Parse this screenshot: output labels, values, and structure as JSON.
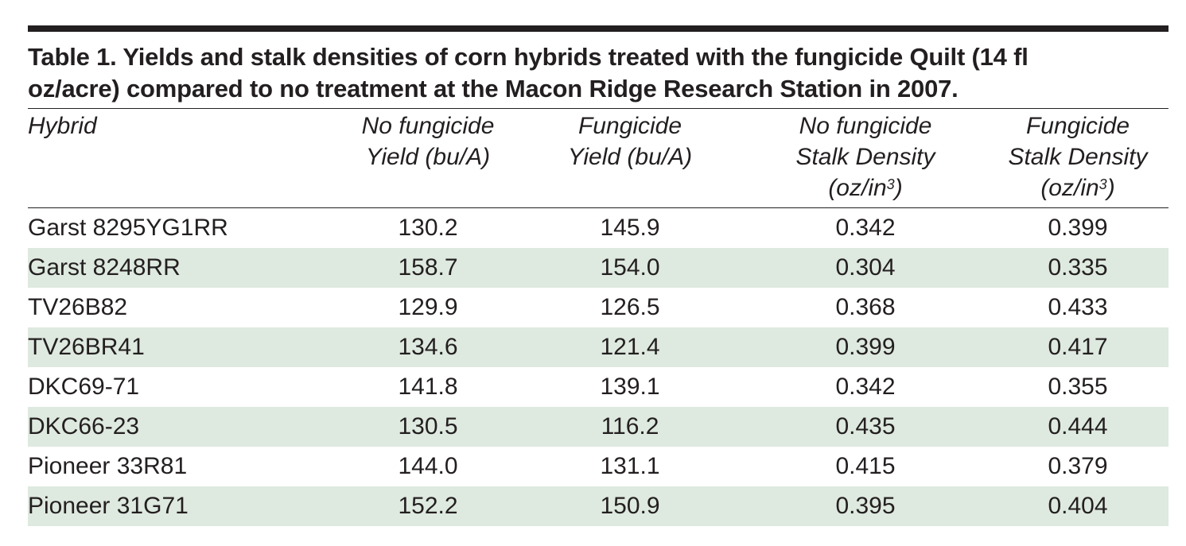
{
  "caption": {
    "line1": "Table 1. Yields and stalk densities of corn hybrids treated with the fungicide Quilt (14 fl",
    "line2": "oz/acre) compared to no treatment at the Macon Ridge Research Station in 2007."
  },
  "columns": [
    {
      "lines": [
        "Hybrid"
      ]
    },
    {
      "lines": [
        "No fungicide",
        "Yield (bu/A)"
      ]
    },
    {
      "lines": [
        "Fungicide",
        "Yield (bu/A)"
      ]
    },
    {
      "lines": [
        "No fungicide",
        "Stalk Density",
        "(oz/in",
        "3",
        ")"
      ]
    },
    {
      "lines": [
        "Fungicide",
        "Stalk Density",
        "(oz/in",
        "3",
        ")"
      ]
    }
  ],
  "rows": [
    {
      "hybrid": "Garst 8295YG1RR",
      "nf_yield": "130.2",
      "f_yield": "145.9",
      "nf_density": "0.342",
      "f_density": "0.399"
    },
    {
      "hybrid": "Garst 8248RR",
      "nf_yield": "158.7",
      "f_yield": "154.0",
      "nf_density": "0.304",
      "f_density": "0.335"
    },
    {
      "hybrid": "TV26B82",
      "nf_yield": "129.9",
      "f_yield": "126.5",
      "nf_density": "0.368",
      "f_density": "0.433"
    },
    {
      "hybrid": "TV26BR41",
      "nf_yield": "134.6",
      "f_yield": "121.4",
      "nf_density": "0.399",
      "f_density": "0.417"
    },
    {
      "hybrid": "DKC69-71",
      "nf_yield": "141.8",
      "f_yield": "139.1",
      "nf_density": "0.342",
      "f_density": "0.355"
    },
    {
      "hybrid": "DKC66-23",
      "nf_yield": "130.5",
      "f_yield": "116.2",
      "nf_density": "0.435",
      "f_density": "0.444"
    },
    {
      "hybrid": "Pioneer 33R81",
      "nf_yield": "144.0",
      "f_yield": "131.1",
      "nf_density": "0.415",
      "f_density": "0.379"
    },
    {
      "hybrid": "Pioneer 31G71",
      "nf_yield": "152.2",
      "f_yield": "150.9",
      "nf_density": "0.395",
      "f_density": "0.404"
    }
  ],
  "colors": {
    "text": "#231f20",
    "row_shade": "#dee9df"
  }
}
